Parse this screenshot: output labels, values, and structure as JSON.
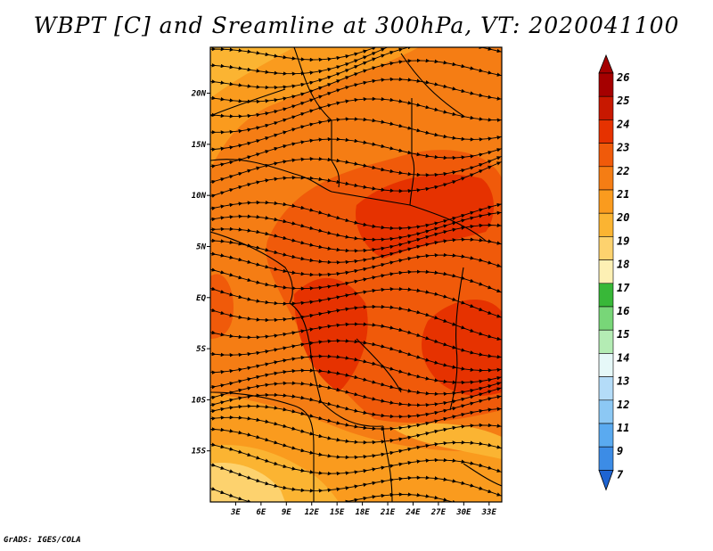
{
  "title": "WBPT [C] and Sreamline at 300hPa, VT: 2020041100",
  "credit": "GrADS: IGES/COLA",
  "map": {
    "lon_ticks": [
      "3E",
      "6E",
      "9E",
      "12E",
      "15E",
      "18E",
      "21E",
      "24E",
      "27E",
      "30E",
      "33E"
    ],
    "lat_ticks": [
      "20N",
      "15N",
      "10N",
      "5N",
      "EQ",
      "5S",
      "10S",
      "15S"
    ],
    "lon_range": [
      0,
      34.5
    ],
    "lat_range": [
      -20,
      24.5
    ]
  },
  "legend": {
    "labels": [
      "26",
      "25",
      "24",
      "23",
      "22",
      "21",
      "20",
      "19",
      "18",
      "17",
      "16",
      "15",
      "14",
      "13",
      "12",
      "11",
      "9",
      "7"
    ],
    "colors": [
      "#a50000",
      "#c81800",
      "#e63200",
      "#f05a0a",
      "#f57d14",
      "#fa9b1e",
      "#fbb432",
      "#fdd26e",
      "#fdf0b4",
      "#38b838",
      "#78d678",
      "#b4ecb4",
      "#e6f8f8",
      "#b4dcf8",
      "#8cc8f4",
      "#5aaaf0",
      "#3c8ce6",
      "#1e64d2"
    ]
  }
}
